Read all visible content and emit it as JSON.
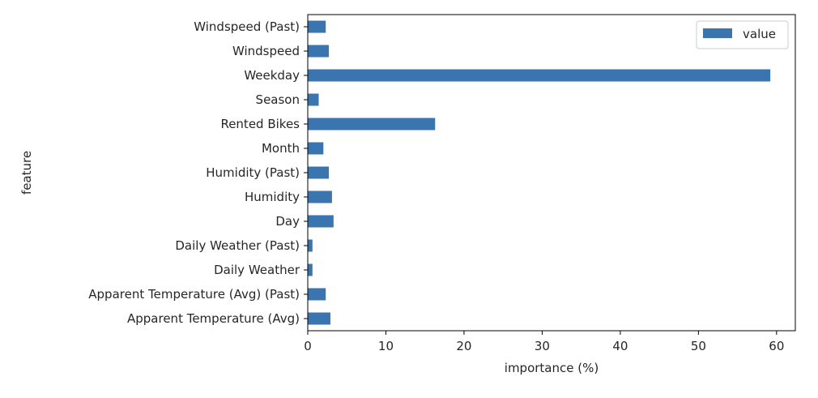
{
  "chart_data": {
    "type": "bar",
    "orientation": "horizontal",
    "title": "",
    "xlabel": "importance (%)",
    "ylabel": "feature",
    "xlim": [
      0,
      62.4
    ],
    "xticks": [
      0,
      10,
      20,
      30,
      40,
      50,
      60
    ],
    "grid": false,
    "legend_position": "top-right",
    "series": [
      {
        "name": "value",
        "color": "#3a75b0",
        "categories": [
          "Apparent Temperature (Avg)",
          "Apparent Temperature (Avg) (Past)",
          "Daily Weather",
          "Daily Weather (Past)",
          "Day",
          "Humidity",
          "Humidity (Past)",
          "Month",
          "Rented Bikes",
          "Season",
          "Weekday",
          "Windspeed",
          "Windspeed (Past)"
        ],
        "values": [
          2.9,
          2.3,
          0.6,
          0.6,
          3.3,
          3.1,
          2.7,
          2.0,
          16.3,
          1.4,
          59.2,
          2.7,
          2.3
        ]
      }
    ]
  }
}
